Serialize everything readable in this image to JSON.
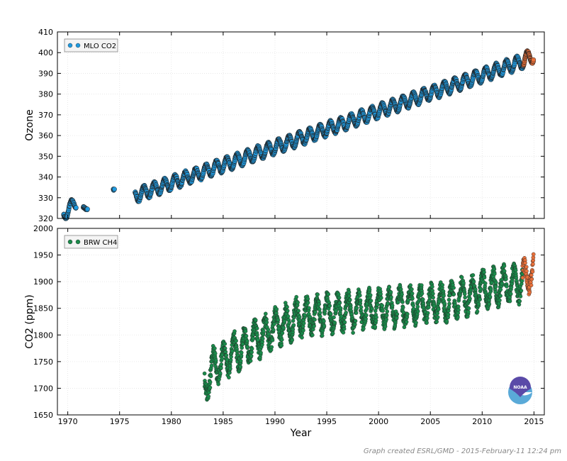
{
  "colors": {
    "mlo_co2": "#1f9ae0",
    "brw_ch4": "#1a8a4a",
    "recent": "#e8703a",
    "edge": "#222222",
    "logo_top": "#5a4aa8",
    "logo_bottom": "#5aaad8"
  },
  "logo": {
    "name": "noaa-logo",
    "text": "NOAA"
  },
  "credit": "Graph created ESRL/GMD - 2015-February-11 12:24 pm",
  "chart_data": [
    {
      "type": "scatter",
      "title": "",
      "xlabel": "",
      "ylabel": "Ozone",
      "xlim": [
        1969,
        2016
      ],
      "ylim": [
        320,
        410
      ],
      "yticks": [
        320,
        330,
        340,
        350,
        360,
        370,
        380,
        390,
        400,
        410
      ],
      "grid": true,
      "legend": {
        "placement": "top-left",
        "entries": [
          "MLO CO2"
        ]
      },
      "series": [
        {
          "name": "MLO CO2",
          "segments": [
            {
              "x_range": [
                1969.6,
                1970.8
              ],
              "y_start": 322,
              "y_end": 328,
              "seasonal_amplitude": 3
            },
            {
              "x_range": [
                1971.5,
                1971.9
              ],
              "y_start": 325,
              "y_end": 325.5,
              "seasonal_amplitude": 1
            },
            {
              "x_range": [
                1974.4,
                1974.5
              ],
              "y_start": 334,
              "y_end": 334,
              "seasonal_amplitude": 0
            },
            {
              "x_range": [
                1976.5,
                2014.0
              ],
              "y_start": 331,
              "y_end": 396,
              "seasonal_amplitude": 3.2
            }
          ]
        },
        {
          "name": "",
          "segments": [
            {
              "x_range": [
                2014.0,
                2014.95
              ],
              "y_start": 396,
              "y_end": 399,
              "seasonal_amplitude": 3.5
            }
          ]
        }
      ]
    },
    {
      "type": "scatter",
      "title": "",
      "xlabel": "Year",
      "ylabel": "CO2 (ppm)",
      "xlim": [
        1969,
        2016
      ],
      "ylim": [
        1650,
        2000
      ],
      "xticks": [
        1970,
        1975,
        1980,
        1985,
        1990,
        1995,
        2000,
        2005,
        2010,
        2015
      ],
      "yticks": [
        1650,
        1700,
        1750,
        1800,
        1850,
        1900,
        1950,
        2000
      ],
      "grid": true,
      "legend": {
        "placement": "top-left",
        "entries": [
          "BRW CH4"
        ]
      },
      "series": [
        {
          "name": "BRW CH4",
          "curve": [
            [
              1983.2,
              1700
            ],
            [
              1984,
              1740
            ],
            [
              1986,
              1765
            ],
            [
              1988,
              1790
            ],
            [
              1990,
              1812
            ],
            [
              1992,
              1830
            ],
            [
              1995,
              1840
            ],
            [
              2000,
              1850
            ],
            [
              2003,
              1855
            ],
            [
              2006,
              1860
            ],
            [
              2008,
              1870
            ],
            [
              2010,
              1885
            ],
            [
              2013.9,
              1900
            ]
          ],
          "seasonal_amplitude": 35
        },
        {
          "name": "",
          "curve": [
            [
              2013.9,
              1905
            ],
            [
              2014.95,
              1920
            ]
          ],
          "seasonal_amplitude": 30
        }
      ]
    }
  ]
}
